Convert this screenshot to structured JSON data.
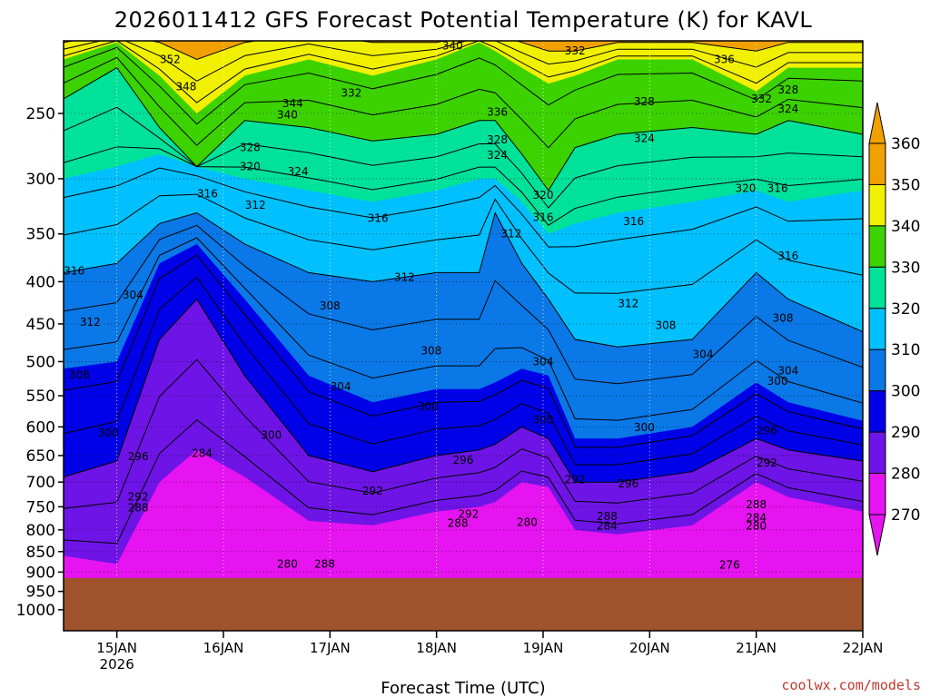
{
  "chart_data": {
    "type": "contour",
    "title": "2026011412 GFS Forecast Potential Temperature (K) for KAVL",
    "xlabel": "Forecast Time (UTC)",
    "ylabel": "",
    "y_axis_inverted": true,
    "y_ticks": [
      250,
      300,
      350,
      400,
      450,
      500,
      550,
      600,
      650,
      700,
      750,
      800,
      850,
      900,
      950,
      1000
    ],
    "x_ticks": [
      {
        "label": "15JAN",
        "sublabel": "2026",
        "day": 15
      },
      {
        "label": "16JAN",
        "day": 16
      },
      {
        "label": "17JAN",
        "day": 17
      },
      {
        "label": "18JAN",
        "day": 18
      },
      {
        "label": "19JAN",
        "day": 19
      },
      {
        "label": "20JAN",
        "day": 20
      },
      {
        "label": "21JAN",
        "day": 21
      },
      {
        "label": "22JAN",
        "day": 22
      }
    ],
    "xlim_days": [
      14.5,
      22.0
    ],
    "ylim_hpa": [
      1000,
      200
    ],
    "grid": true,
    "colorbar": {
      "ticks": [
        360,
        350,
        340,
        330,
        320,
        310,
        300,
        290,
        280,
        270
      ],
      "bands": [
        {
          "range": [
            350,
            360
          ],
          "color": "#f0a000"
        },
        {
          "range": [
            340,
            350
          ],
          "color": "#f0f000"
        },
        {
          "range": [
            330,
            340
          ],
          "color": "#3cd200"
        },
        {
          "range": [
            320,
            330
          ],
          "color": "#00e29a"
        },
        {
          "range": [
            310,
            320
          ],
          "color": "#00c0ff"
        },
        {
          "range": [
            300,
            310
          ],
          "color": "#0a78e6"
        },
        {
          "range": [
            290,
            300
          ],
          "color": "#0000e8"
        },
        {
          "range": [
            280,
            290
          ],
          "color": "#6e14e6"
        },
        {
          "range": [
            270,
            280
          ],
          "color": "#e614f0"
        }
      ],
      "over_color": "#f0a000",
      "under_color": "#e614f0"
    },
    "terrain_color": "#a0522d",
    "surface_pressure_hpa": 915,
    "profile_days": [
      14.5,
      15.0,
      15.4,
      15.75,
      16.2,
      16.8,
      17.4,
      18.0,
      18.4,
      18.55,
      18.8,
      19.05,
      19.3,
      19.7,
      20.4,
      21.0,
      21.3,
      22.0
    ],
    "iso_levels": [
      {
        "theta": 280,
        "p": [
          860,
          880,
          700,
          640,
          690,
          780,
          790,
          760,
          750,
          740,
          700,
          710,
          800,
          810,
          790,
          700,
          730,
          760
        ]
      },
      {
        "theta": 290,
        "p": [
          690,
          660,
          470,
          420,
          520,
          650,
          680,
          650,
          640,
          630,
          600,
          620,
          700,
          700,
          680,
          620,
          640,
          660
        ]
      },
      {
        "theta": 300,
        "p": [
          510,
          500,
          380,
          360,
          420,
          520,
          560,
          540,
          540,
          530,
          510,
          520,
          620,
          620,
          600,
          530,
          560,
          590
        ]
      },
      {
        "theta": 310,
        "p": [
          390,
          380,
          340,
          330,
          360,
          390,
          400,
          390,
          390,
          330,
          380,
          420,
          470,
          480,
          470,
          390,
          420,
          460
        ]
      },
      {
        "theta": 320,
        "p": [
          300,
          290,
          280,
          290,
          300,
          310,
          320,
          310,
          300,
          300,
          320,
          350,
          340,
          330,
          320,
          310,
          320,
          310
        ]
      },
      {
        "theta": 330,
        "p": [
          240,
          220,
          260,
          290,
          255,
          260,
          270,
          265,
          255,
          255,
          280,
          310,
          275,
          265,
          260,
          265,
          255,
          265
        ]
      },
      {
        "theta": 340,
        "p": [
          215,
          205,
          225,
          250,
          225,
          215,
          225,
          215,
          205,
          210,
          220,
          230,
          225,
          215,
          215,
          235,
          220,
          220
        ]
      },
      {
        "theta": 350,
        "p": [
          205,
          200,
          205,
          215,
          205,
          200,
          205,
          205,
          200,
          200,
          205,
          210,
          210,
          205,
          205,
          210,
          205,
          205
        ]
      }
    ],
    "contour_labels": [
      {
        "text": "352",
        "day": 15.5,
        "p": 215
      },
      {
        "text": "348",
        "day": 15.65,
        "p": 232
      },
      {
        "text": "344",
        "day": 16.65,
        "p": 243
      },
      {
        "text": "340",
        "day": 16.6,
        "p": 251
      },
      {
        "text": "340",
        "day": 18.15,
        "p": 207
      },
      {
        "text": "332",
        "day": 17.2,
        "p": 236
      },
      {
        "text": "332",
        "day": 19.3,
        "p": 210
      },
      {
        "text": "336",
        "day": 20.7,
        "p": 215
      },
      {
        "text": "336",
        "day": 18.57,
        "p": 249
      },
      {
        "text": "328",
        "day": 16.25,
        "p": 275
      },
      {
        "text": "328",
        "day": 18.57,
        "p": 269
      },
      {
        "text": "328",
        "day": 19.95,
        "p": 242
      },
      {
        "text": "328",
        "day": 21.3,
        "p": 234
      },
      {
        "text": "332",
        "day": 21.05,
        "p": 240
      },
      {
        "text": "324",
        "day": 21.3,
        "p": 247
      },
      {
        "text": "324",
        "day": 16.7,
        "p": 294
      },
      {
        "text": "324",
        "day": 18.57,
        "p": 281
      },
      {
        "text": "324",
        "day": 19.95,
        "p": 268
      },
      {
        "text": "320",
        "day": 16.25,
        "p": 290
      },
      {
        "text": "320",
        "day": 19.0,
        "p": 314
      },
      {
        "text": "320",
        "day": 20.9,
        "p": 308
      },
      {
        "text": "316",
        "day": 21.2,
        "p": 308
      },
      {
        "text": "316",
        "day": 15.85,
        "p": 313
      },
      {
        "text": "316",
        "day": 17.45,
        "p": 335
      },
      {
        "text": "316",
        "day": 19.0,
        "p": 334
      },
      {
        "text": "316",
        "day": 19.85,
        "p": 338
      },
      {
        "text": "316",
        "day": 14.6,
        "p": 388
      },
      {
        "text": "316",
        "day": 21.3,
        "p": 372
      },
      {
        "text": "312",
        "day": 16.3,
        "p": 323
      },
      {
        "text": "312",
        "day": 18.7,
        "p": 350
      },
      {
        "text": "312",
        "day": 17.7,
        "p": 395
      },
      {
        "text": "312",
        "day": 19.8,
        "p": 425
      },
      {
        "text": "312",
        "day": 14.75,
        "p": 448
      },
      {
        "text": "308",
        "day": 17.0,
        "p": 428
      },
      {
        "text": "308",
        "day": 17.95,
        "p": 485
      },
      {
        "text": "308",
        "day": 20.15,
        "p": 452
      },
      {
        "text": "308",
        "day": 21.25,
        "p": 443
      },
      {
        "text": "308",
        "day": 14.65,
        "p": 519
      },
      {
        "text": "304",
        "day": 15.15,
        "p": 415
      },
      {
        "text": "304",
        "day": 17.1,
        "p": 536
      },
      {
        "text": "304",
        "day": 19.0,
        "p": 500
      },
      {
        "text": "304",
        "day": 20.5,
        "p": 490
      },
      {
        "text": "304",
        "day": 21.3,
        "p": 513
      },
      {
        "text": "300",
        "day": 17.92,
        "p": 567
      },
      {
        "text": "300",
        "day": 19.0,
        "p": 588
      },
      {
        "text": "300",
        "day": 19.95,
        "p": 601
      },
      {
        "text": "300",
        "day": 21.2,
        "p": 528
      },
      {
        "text": "300",
        "day": 14.92,
        "p": 610
      },
      {
        "text": "300",
        "day": 16.45,
        "p": 614
      },
      {
        "text": "296",
        "day": 15.2,
        "p": 652
      },
      {
        "text": "296",
        "day": 18.25,
        "p": 658
      },
      {
        "text": "296",
        "day": 19.8,
        "p": 703
      },
      {
        "text": "296",
        "day": 21.1,
        "p": 606
      },
      {
        "text": "292",
        "day": 15.2,
        "p": 730
      },
      {
        "text": "292",
        "day": 17.4,
        "p": 718
      },
      {
        "text": "292",
        "day": 18.3,
        "p": 766
      },
      {
        "text": "292",
        "day": 19.3,
        "p": 695
      },
      {
        "text": "292",
        "day": 21.1,
        "p": 663
      },
      {
        "text": "288",
        "day": 15.2,
        "p": 752
      },
      {
        "text": "288",
        "day": 18.2,
        "p": 785
      },
      {
        "text": "288",
        "day": 19.6,
        "p": 770
      },
      {
        "text": "288",
        "day": 21.0,
        "p": 745
      },
      {
        "text": "284",
        "day": 15.8,
        "p": 646
      },
      {
        "text": "284",
        "day": 19.6,
        "p": 791
      },
      {
        "text": "284",
        "day": 21.0,
        "p": 773
      },
      {
        "text": "280",
        "day": 16.6,
        "p": 880
      },
      {
        "text": "280",
        "day": 18.85,
        "p": 783
      },
      {
        "text": "280",
        "day": 21.0,
        "p": 791
      },
      {
        "text": "288",
        "day": 16.95,
        "p": 880
      },
      {
        "text": "276",
        "day": 20.75,
        "p": 882
      }
    ],
    "annotation": "coolwx.com/models"
  }
}
